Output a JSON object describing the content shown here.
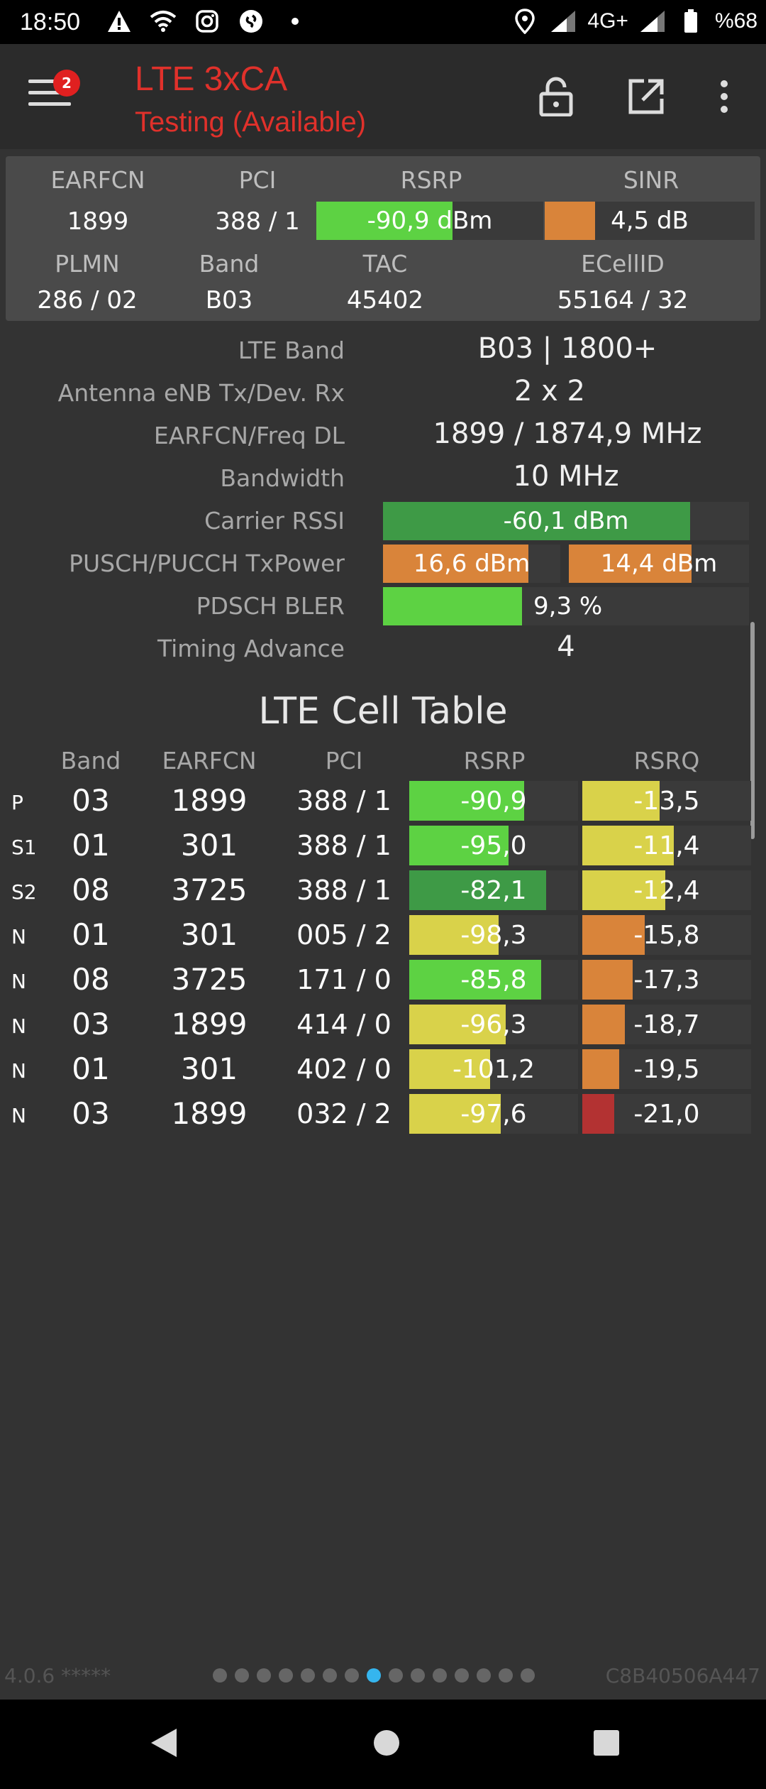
{
  "status_bar": {
    "time": "18:50",
    "network": "4G+",
    "battery": "%68"
  },
  "app_bar": {
    "title": "LTE 3xCA",
    "subtitle": "Testing (Available)",
    "menu_badge": "2"
  },
  "summary": {
    "labels": {
      "earfcn": "EARFCN",
      "pci": "PCI",
      "rsrp": "RSRP",
      "sinr": "SINR",
      "plmn": "PLMN",
      "band": "Band",
      "tac": "TAC",
      "ecellid": "ECellID"
    },
    "earfcn": "1899",
    "pci": "388 / 1",
    "rsrp": "-90,9 dBm",
    "rsrp_fill": 0.6,
    "sinr": "4,5 dB",
    "sinr_fill": 0.24,
    "plmn": "286 / 02",
    "band": "B03",
    "tac": "45402",
    "ecellid": "55164 / 32"
  },
  "details": {
    "lte_band": {
      "label": "LTE Band",
      "value": "B03 | 1800+"
    },
    "antenna": {
      "label": "Antenna eNB Tx/Dev. Rx",
      "value": "2 x 2"
    },
    "earfcn_freq": {
      "label": "EARFCN/Freq DL",
      "value": "1899 / 1874,9 MHz"
    },
    "bandwidth": {
      "label": "Bandwidth",
      "value": "10 MHz"
    },
    "carrier_rssi": {
      "label": "Carrier RSSI",
      "value": "-60,1 dBm",
      "fill": 0.84
    },
    "tx_power": {
      "label": "PUSCH/PUCCH TxPower",
      "pusch": "16,6 dBm",
      "pusch_fill": 0.82,
      "pucch": "14,4 dBm",
      "pucch_fill": 0.68
    },
    "bler": {
      "label": "PDSCH BLER",
      "value": "9,3 %",
      "fill": 0.38
    },
    "timing_advance": {
      "label": "Timing Advance",
      "value": "4"
    }
  },
  "cell_table": {
    "title": "LTE Cell Table",
    "headers": {
      "band": "Band",
      "earfcn": "EARFCN",
      "pci": "PCI",
      "rsrp": "RSRP",
      "rsrq": "RSRQ"
    },
    "rows": [
      {
        "type": "P",
        "band": "03",
        "earfcn": "1899",
        "pci": "388 / 1",
        "rsrp": "-90,9",
        "rsrp_fill": 0.68,
        "rsrp_color": "#5dd243",
        "rsrq": "-13,5",
        "rsrq_fill": 0.46,
        "rsrq_color": "#d9d24a"
      },
      {
        "type": "S1",
        "band": "01",
        "earfcn": "301",
        "pci": "388 / 1",
        "rsrp": "-95,0",
        "rsrp_fill": 0.59,
        "rsrp_color": "#5dd243",
        "rsrq": "-11,4",
        "rsrq_fill": 0.54,
        "rsrq_color": "#d9d24a"
      },
      {
        "type": "S2",
        "band": "08",
        "earfcn": "3725",
        "pci": "388 / 1",
        "rsrp": "-82,1",
        "rsrp_fill": 0.81,
        "rsrp_color": "#3e9a46",
        "rsrq": "-12,4",
        "rsrq_fill": 0.49,
        "rsrq_color": "#d9d24a"
      },
      {
        "type": "N",
        "band": "01",
        "earfcn": "301",
        "pci": "005 / 2",
        "rsrp": "-98,3",
        "rsrp_fill": 0.53,
        "rsrp_color": "#d9d24a",
        "rsrq": "-15,8",
        "rsrq_fill": 0.37,
        "rsrq_color": "#d9843a"
      },
      {
        "type": "N",
        "band": "08",
        "earfcn": "3725",
        "pci": "171 / 0",
        "rsrp": "-85,8",
        "rsrp_fill": 0.78,
        "rsrp_color": "#5dd243",
        "rsrq": "-17,3",
        "rsrq_fill": 0.3,
        "rsrq_color": "#d9843a"
      },
      {
        "type": "N",
        "band": "03",
        "earfcn": "1899",
        "pci": "414 / 0",
        "rsrp": "-96,3",
        "rsrp_fill": 0.57,
        "rsrp_color": "#d9d24a",
        "rsrq": "-18,7",
        "rsrq_fill": 0.25,
        "rsrq_color": "#d9843a"
      },
      {
        "type": "N",
        "band": "01",
        "earfcn": "301",
        "pci": "402 / 0",
        "rsrp": "-101,2",
        "rsrp_fill": 0.48,
        "rsrp_color": "#d9d24a",
        "rsrq": "-19,5",
        "rsrq_fill": 0.22,
        "rsrq_color": "#d9843a"
      },
      {
        "type": "N",
        "band": "03",
        "earfcn": "1899",
        "pci": "032 / 2",
        "rsrp": "-97,6",
        "rsrp_fill": 0.54,
        "rsrp_color": "#d9d24a",
        "rsrq": "-21,0",
        "rsrq_fill": 0.19,
        "rsrq_color": "#b33232"
      }
    ]
  },
  "footer": {
    "version": "4.0.6 *****",
    "cell_hex": "C8B40506A447",
    "page_count": 15,
    "active_page": 7
  },
  "colors": {
    "green": "#5dd243",
    "dark_green": "#3e9a46",
    "orange": "#d9843a",
    "yellow": "#d9d24a",
    "red": "#b33232",
    "accent": "#e0312b",
    "page_dot_active": "#35b5ee"
  }
}
